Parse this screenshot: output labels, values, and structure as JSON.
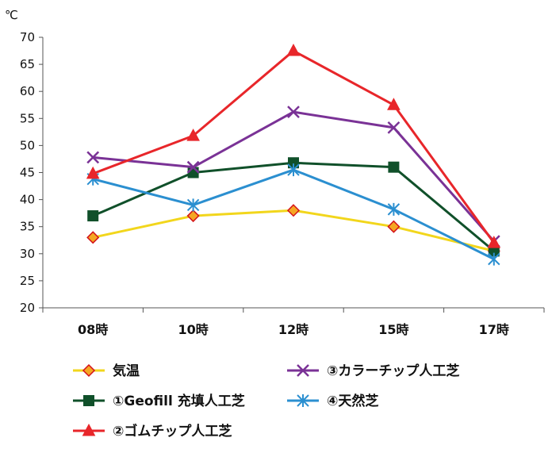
{
  "chart_data": {
    "type": "line",
    "unit_label": "℃",
    "categories": [
      "08時",
      "10時",
      "12時",
      "15時",
      "17時"
    ],
    "ylim": [
      20,
      70
    ],
    "yticks": [
      20,
      25,
      30,
      35,
      40,
      45,
      50,
      55,
      60,
      65,
      70
    ],
    "grid": false,
    "legend_position": "bottom",
    "series": [
      {
        "name": "気温",
        "values": [
          33,
          37,
          38,
          35,
          30.5
        ],
        "color": "#f2d61c",
        "marker": "diamond",
        "marker_fill": "#f5a623",
        "marker_stroke": "#d4121a"
      },
      {
        "name": "①Geofill 充填人工芝",
        "values": [
          37,
          45,
          46.8,
          46,
          30.5
        ],
        "color": "#10502a",
        "marker": "square",
        "marker_fill": "#10502a",
        "marker_stroke": "#10502a"
      },
      {
        "name": "②ゴムチップ人工芝",
        "values": [
          44.8,
          51.8,
          67.5,
          57.5,
          32
        ],
        "color": "#e8262a",
        "marker": "triangle",
        "marker_fill": "#e8262a",
        "marker_stroke": "#e8262a"
      },
      {
        "name": "③カラーチップ人工芝",
        "values": [
          47.8,
          46,
          56.2,
          53.3,
          32.3
        ],
        "color": "#7a3296",
        "marker": "x",
        "marker_fill": "none",
        "marker_stroke": "#7a3296"
      },
      {
        "name": "④天然芝",
        "values": [
          43.8,
          39,
          45.5,
          38.2,
          29
        ],
        "color": "#2b8fd0",
        "marker": "asterisk",
        "marker_fill": "none",
        "marker_stroke": "#2b8fd0"
      }
    ],
    "legend_order": [
      0,
      3,
      1,
      4,
      2
    ]
  }
}
